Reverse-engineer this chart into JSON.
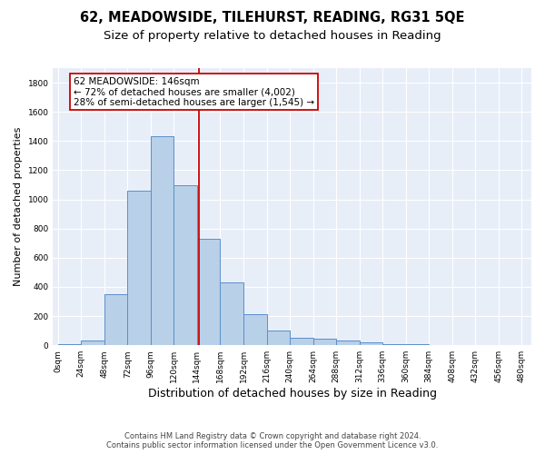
{
  "title1": "62, MEADOWSIDE, TILEHURST, READING, RG31 5QE",
  "title2": "Size of property relative to detached houses in Reading",
  "xlabel": "Distribution of detached houses by size in Reading",
  "ylabel": "Number of detached properties",
  "bar_values": [
    10,
    35,
    350,
    1060,
    1430,
    1100,
    730,
    430,
    215,
    100,
    50,
    45,
    30,
    20,
    10,
    5,
    3,
    2,
    1
  ],
  "bar_left_edges": [
    0,
    24,
    48,
    72,
    96,
    120,
    144,
    168,
    192,
    216,
    240,
    264,
    288,
    312,
    336,
    360,
    384,
    408,
    432
  ],
  "bin_width": 24,
  "bar_color": "#b8d0e8",
  "bar_edge_color": "#5b8fc9",
  "vline_x": 146,
  "vline_color": "#cc0000",
  "annotation_text": "62 MEADOWSIDE: 146sqm\n← 72% of detached houses are smaller (4,002)\n28% of semi-detached houses are larger (1,545) →",
  "annotation_box_color": "#ffffff",
  "annotation_box_edge": "#cc0000",
  "ylim": [
    0,
    1900
  ],
  "yticks": [
    0,
    200,
    400,
    600,
    800,
    1000,
    1200,
    1400,
    1600,
    1800
  ],
  "xtick_labels": [
    "0sqm",
    "24sqm",
    "48sqm",
    "72sqm",
    "96sqm",
    "120sqm",
    "144sqm",
    "168sqm",
    "192sqm",
    "216sqm",
    "240sqm",
    "264sqm",
    "288sqm",
    "312sqm",
    "336sqm",
    "360sqm",
    "384sqm",
    "408sqm",
    "432sqm",
    "456sqm",
    "480sqm"
  ],
  "xtick_positions": [
    0,
    24,
    48,
    72,
    96,
    120,
    144,
    168,
    192,
    216,
    240,
    264,
    288,
    312,
    336,
    360,
    384,
    408,
    432,
    456,
    480
  ],
  "background_color": "#e8eef8",
  "grid_color": "#ffffff",
  "footnote1": "Contains HM Land Registry data © Crown copyright and database right 2024.",
  "footnote2": "Contains public sector information licensed under the Open Government Licence v3.0.",
  "title1_fontsize": 10.5,
  "title2_fontsize": 9.5,
  "xlabel_fontsize": 9,
  "ylabel_fontsize": 8,
  "tick_fontsize": 6.5,
  "annotation_fontsize": 7.5,
  "footnote_fontsize": 6
}
